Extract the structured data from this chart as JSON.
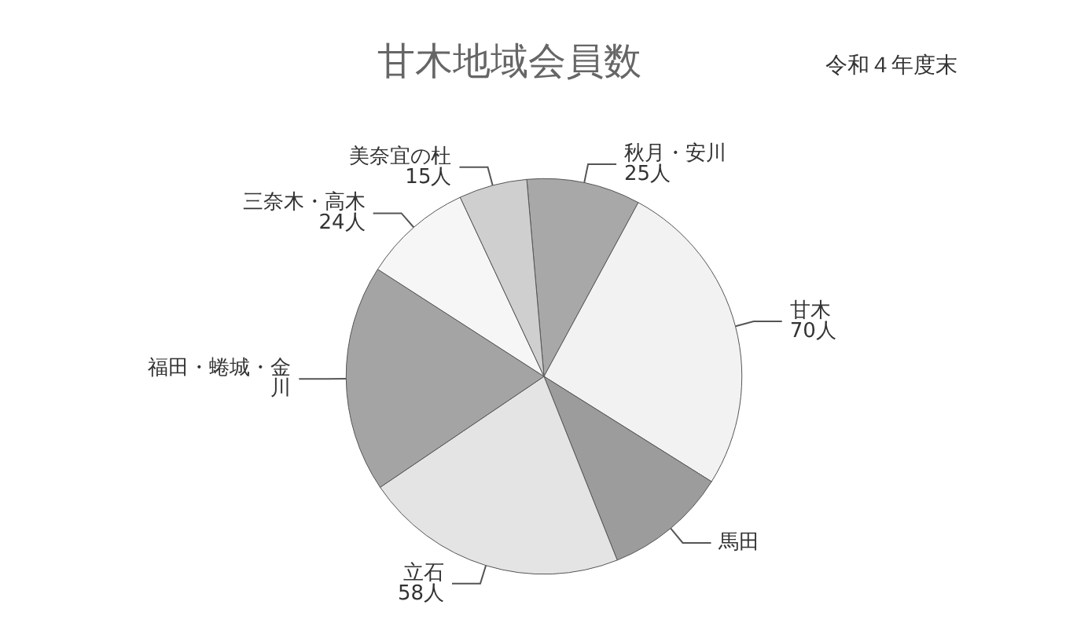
{
  "chart_data": {
    "type": "pie",
    "title": "甘木地域会員数",
    "subtitle": "令和４年度末",
    "categories": [
      "秋月・安川",
      "甘木",
      "馬田",
      "立石",
      "福田・蜷城・金川",
      "三奈木・高木",
      "美奈宜の杜"
    ],
    "values": [
      25,
      70,
      27,
      58,
      50,
      24,
      15
    ],
    "value_labels": [
      "25人",
      "70人",
      null,
      "58人",
      null,
      "24人",
      "15人"
    ],
    "colors": [
      "#a8a8a8",
      "#f2f2f2",
      "#9c9c9c",
      "#e4e4e4",
      "#a4a4a4",
      "#f6f6f6",
      "#cfcfcf"
    ],
    "legend": false
  }
}
